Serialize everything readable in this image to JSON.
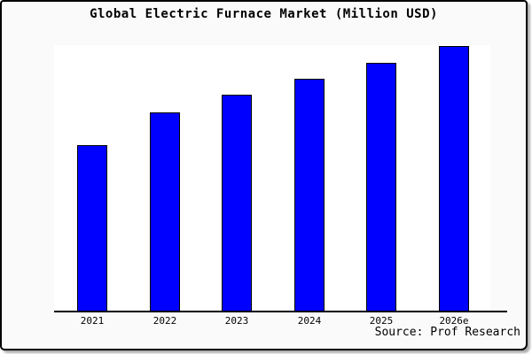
{
  "title": "Global Electric Furnace Market (Million USD)",
  "source_note": "Source: Prof Research",
  "colors": {
    "frame_background": "#FAFAFA",
    "plot_background": "#FFFFFF",
    "bar_fill": "#0000FF",
    "bar_border": "#000000",
    "axis_line": "#000000",
    "text": "#000000",
    "frame_border": "#000000"
  },
  "chart_data": {
    "type": "bar",
    "title": "Global Electric Furnace Market (Million USD)",
    "categories": [
      "2021",
      "2022",
      "2023",
      "2024",
      "2025",
      "2026e"
    ],
    "values_pct_of_max": [
      62.7,
      75.0,
      81.7,
      87.7,
      93.7,
      100.0
    ],
    "xlabel": "",
    "ylabel": "",
    "y_axis_tick_labels_visible": false,
    "grid": false,
    "legend": false,
    "annotation": "Source: Prof Research"
  }
}
